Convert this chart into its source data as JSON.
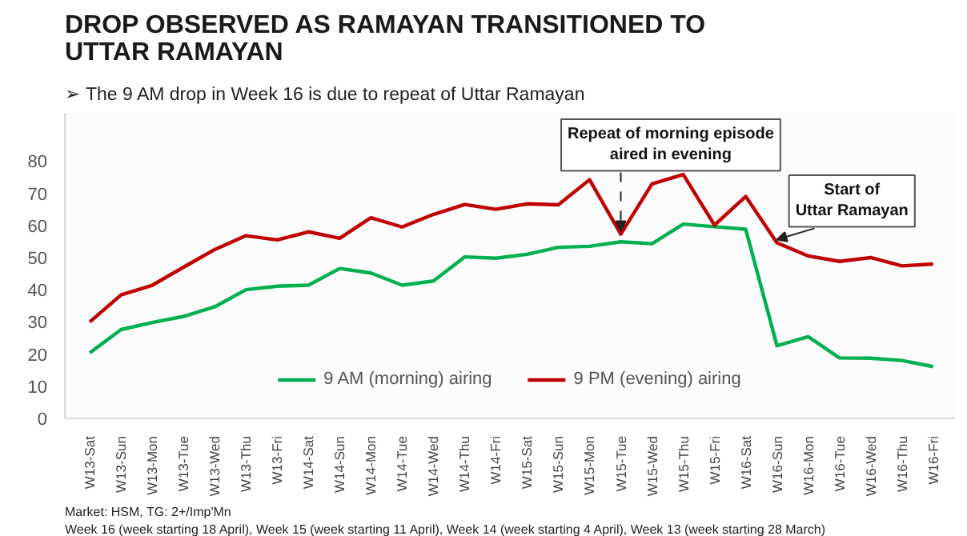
{
  "chart_data": {
    "type": "line",
    "title": "DROP OBSERVED AS RAMAYAN TRANSITIONED TO\nUTTAR RAMAYAN",
    "subtitle": "➢  The 9 AM drop in Week 16 is due to repeat of Uttar Ramayan",
    "categories": [
      "W13-Sat",
      "W13-Sun",
      "W13-Mon",
      "W13-Tue",
      "W13-Wed",
      "W13-Thu",
      "W13-Fri",
      "W14-Sat",
      "W14-Sun",
      "W14-Mon",
      "W14-Tue",
      "W14-Wed",
      "W14-Thu",
      "W14-Fri",
      "W15-Sat",
      "W15-Sun",
      "W15-Mon",
      "W15-Tue",
      "W15-Wed",
      "W15-Thu",
      "W15-Fri",
      "W16-Sat",
      "W16-Sun",
      "W16-Mon",
      "W16-Tue",
      "W16-Wed",
      "W16-Thu",
      "W16-Fri"
    ],
    "series": [
      {
        "name": "9 AM (morning) airing",
        "color": "#00b050",
        "values": [
          20.4,
          27.6,
          29.8,
          31.7,
          34.7,
          40,
          41.1,
          41.4,
          46.6,
          45.2,
          41.4,
          42.7,
          50.2,
          49.8,
          51,
          53.2,
          53.5,
          54.9,
          54.3,
          60.4,
          59.6,
          58.8,
          22.6,
          25.4,
          18.8,
          18.7,
          18,
          16.1
        ]
      },
      {
        "name": "9 PM (evening) airing",
        "color": "#c00000",
        "values": [
          30,
          38.4,
          41.4,
          47,
          52.5,
          56.8,
          55.5,
          58,
          56,
          62.4,
          59.5,
          63.4,
          66.5,
          65,
          66.7,
          66.4,
          74.2,
          57.3,
          72.9,
          75.8,
          60.1,
          69,
          54.6,
          50.5,
          48.8,
          50,
          47.4,
          48
        ]
      }
    ],
    "ylim": [
      0,
      95
    ],
    "yticks": [
      0,
      10,
      20,
      30,
      40,
      50,
      60,
      70,
      80
    ],
    "grid": false,
    "legend": "bottom",
    "marker": "none",
    "line_style": "solid",
    "annotations": [
      {
        "text": "Repeat of morning episode\naired in evening",
        "x": "W15-Tue",
        "y": 57.3
      },
      {
        "text": "Start of\nUttar Ramayan",
        "x": "W16-Sun",
        "y": 54.6
      },
      "Market: HSM, TG: 2+/Imp'Mn",
      "Week 16 (week starting 18 April), Week 15 (week starting 11 April), Week 14 (week starting 4 April), Week 13 (week starting 28 March)"
    ]
  }
}
